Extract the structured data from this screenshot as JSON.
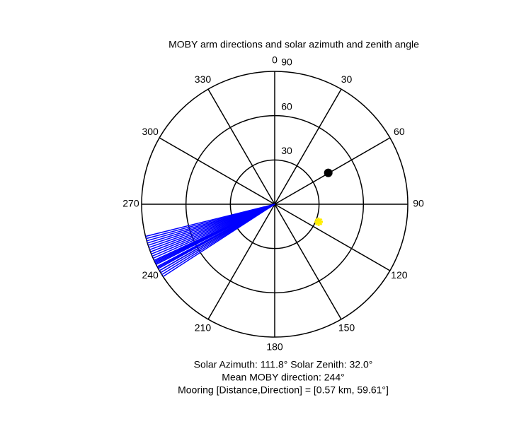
{
  "chart_data": {
    "type": "polar",
    "title": "MOBY arm directions and solar azimuth and zenith angle",
    "direction": "clockwise",
    "zero": "top",
    "rlim": [
      0,
      90
    ],
    "rticks": [
      30,
      60,
      90
    ],
    "thetaticks": [
      0,
      30,
      60,
      90,
      120,
      150,
      180,
      210,
      240,
      270,
      300,
      330
    ],
    "grid": true,
    "series": [
      {
        "color": "#0000ff",
        "style": "spokes",
        "theta": [
          237,
          238,
          239,
          240,
          241,
          241.5,
          242,
          243,
          243.5,
          244,
          244.5,
          245,
          246,
          247,
          248,
          249,
          250,
          251,
          252,
          253,
          254,
          255,
          256
        ],
        "r": [
          90,
          90,
          90,
          90,
          90,
          90,
          90,
          90,
          90,
          90,
          90,
          90,
          90,
          90,
          90,
          90,
          90,
          90,
          90,
          90,
          90,
          90,
          90
        ]
      },
      {
        "color": "#000000",
        "style": "dot",
        "theta": [
          59.61
        ],
        "r": [
          42
        ]
      },
      {
        "color": "#ffee00",
        "style": "star",
        "theta": [
          111.8
        ],
        "r": [
          32
        ]
      }
    ],
    "annotations": [
      "Solar Azimuth: 111.8°   Solar Zenith: 32.0°",
      "Mean MOBY direction: 244°",
      "Mooring [Distance,Direction] = [0.57 km, 59.61°]"
    ]
  }
}
